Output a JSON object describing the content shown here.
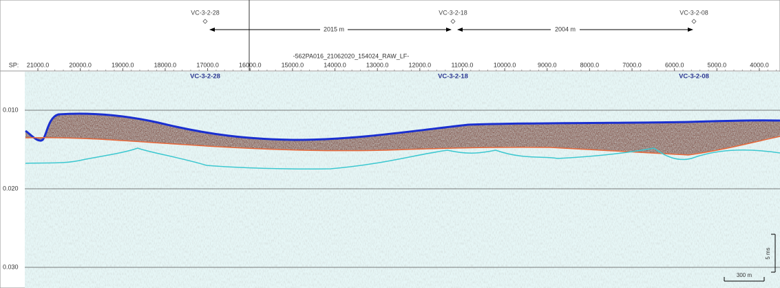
{
  "header": {
    "title": "-562PA016_21062020_154024_RAW_LF-",
    "cores": [
      {
        "name": "VC-3-2-28"
      },
      {
        "name": "VC-3-2-18"
      },
      {
        "name": "VC-3-2-08"
      }
    ],
    "distances": [
      "2015 m",
      "2004 m"
    ]
  },
  "sp_axis": {
    "prefix": "SP:",
    "labels": [
      "21000.0",
      "20000.0",
      "19000.0",
      "18000.0",
      "17000.0",
      "16000.0",
      "15000.0",
      "14000.0",
      "13000.0",
      "12000.0",
      "11000.0",
      "10000.0",
      "9000.0",
      "8000.0",
      "7000.0",
      "6000.0",
      "5000.0",
      "4000.0"
    ]
  },
  "time_axis": {
    "labels": [
      "0.010",
      "0.020",
      "0.030"
    ]
  },
  "scale_bars": {
    "vertical": "5 ms",
    "horizontal": "300 m"
  }
}
